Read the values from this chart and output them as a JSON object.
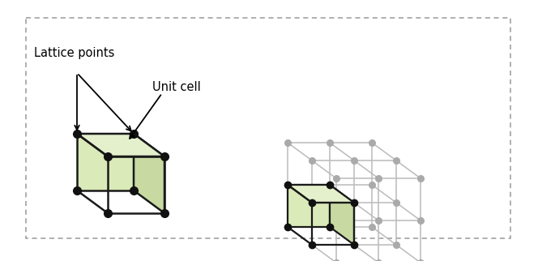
{
  "fig_width": 6.64,
  "fig_height": 3.22,
  "dpi": 100,
  "bg_color": "#ffffff",
  "border_color": "#999999",
  "face_color_front": "#daeab8",
  "face_color_side": "#c8d9a2",
  "face_color_top": "#e4f0cc",
  "edge_color_dark": "#1a1a1a",
  "edge_color_gray": "#bbbbbb",
  "dot_color_dark": "#111111",
  "dot_color_gray": "#aaaaaa",
  "label_lattice": "Lattice points",
  "label_unit": "Unit cell",
  "label_fontsize": 10.5
}
